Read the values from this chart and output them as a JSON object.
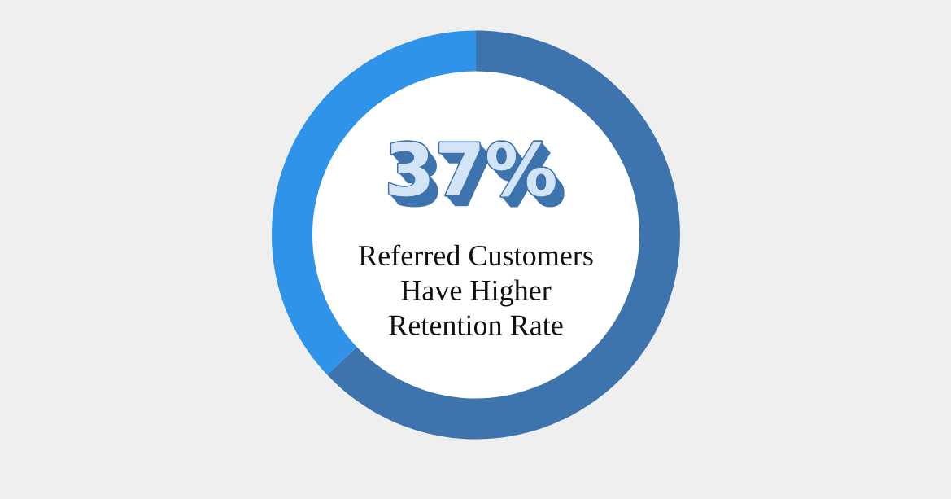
{
  "chart_data": {
    "type": "donut",
    "categories": [
      null,
      null
    ],
    "values": [
      63,
      37
    ],
    "colors": [
      "#3e74ae",
      "#2e93e9"
    ],
    "annotations": [
      "37%",
      "Referred Customers\nHave Higher\nRetention Rate"
    ]
  }
}
